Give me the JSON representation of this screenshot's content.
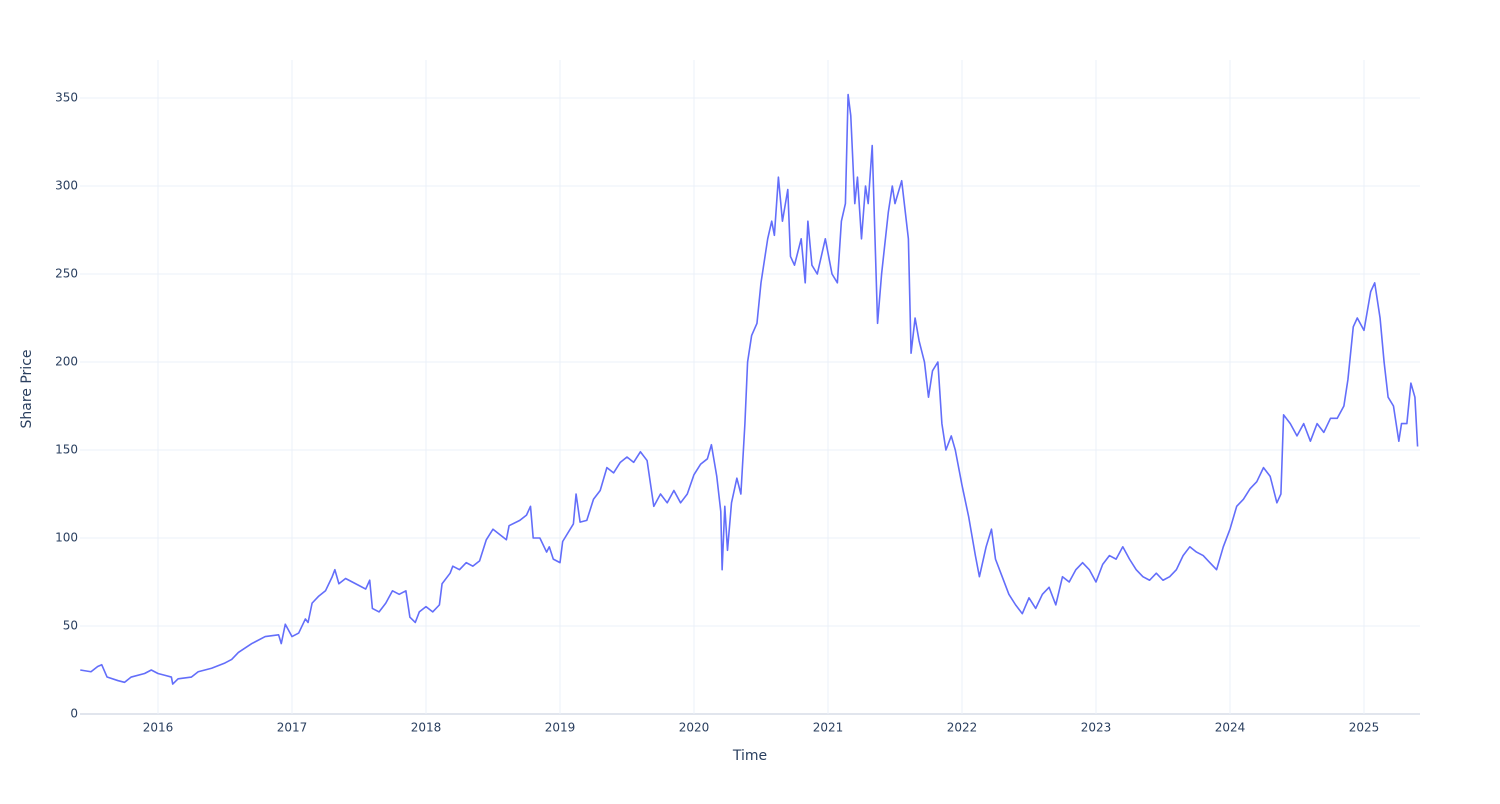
{
  "chart_data": {
    "type": "line",
    "x_label": "Time",
    "y_label": "Share Price",
    "grid": true,
    "xlim": [
      2015.418,
      2025.418
    ],
    "ylim": [
      0,
      371.6
    ],
    "xticks": [
      2016,
      2017,
      2018,
      2019,
      2020,
      2021,
      2022,
      2023,
      2024,
      2025
    ],
    "yticks": [
      0,
      50,
      100,
      150,
      200,
      250,
      300,
      350
    ],
    "x": [
      2015.42,
      2015.5,
      2015.55,
      2015.58,
      2015.62,
      2015.7,
      2015.75,
      2015.8,
      2015.9,
      2015.95,
      2016.0,
      2016.05,
      2016.1,
      2016.11,
      2016.15,
      2016.25,
      2016.3,
      2016.4,
      2016.5,
      2016.55,
      2016.6,
      2016.7,
      2016.8,
      2016.9,
      2016.92,
      2016.95,
      2017.0,
      2017.05,
      2017.1,
      2017.12,
      2017.15,
      2017.2,
      2017.25,
      2017.3,
      2017.32,
      2017.35,
      2017.4,
      2017.45,
      2017.5,
      2017.55,
      2017.58,
      2017.6,
      2017.65,
      2017.7,
      2017.75,
      2017.8,
      2017.85,
      2017.88,
      2017.92,
      2017.95,
      2018.0,
      2018.05,
      2018.1,
      2018.12,
      2018.18,
      2018.2,
      2018.25,
      2018.3,
      2018.35,
      2018.4,
      2018.45,
      2018.5,
      2018.55,
      2018.6,
      2018.62,
      2018.7,
      2018.75,
      2018.78,
      2018.8,
      2018.85,
      2018.9,
      2018.92,
      2018.95,
      2019.0,
      2019.02,
      2019.1,
      2019.12,
      2019.15,
      2019.2,
      2019.25,
      2019.3,
      2019.35,
      2019.4,
      2019.45,
      2019.5,
      2019.55,
      2019.6,
      2019.65,
      2019.7,
      2019.75,
      2019.8,
      2019.85,
      2019.9,
      2019.95,
      2020.0,
      2020.05,
      2020.1,
      2020.13,
      2020.17,
      2020.2,
      2020.21,
      2020.23,
      2020.25,
      2020.28,
      2020.32,
      2020.35,
      2020.38,
      2020.4,
      2020.43,
      2020.47,
      2020.5,
      2020.55,
      2020.58,
      2020.6,
      2020.63,
      2020.66,
      2020.7,
      2020.72,
      2020.75,
      2020.8,
      2020.83,
      2020.85,
      2020.88,
      2020.92,
      2020.98,
      2021.03,
      2021.07,
      2021.1,
      2021.13,
      2021.15,
      2021.17,
      2021.2,
      2021.22,
      2021.25,
      2021.28,
      2021.3,
      2021.33,
      2021.37,
      2021.4,
      2021.45,
      2021.48,
      2021.5,
      2021.55,
      2021.6,
      2021.62,
      2021.65,
      2021.68,
      2021.72,
      2021.75,
      2021.78,
      2021.82,
      2021.85,
      2021.88,
      2021.92,
      2021.95,
      2022.0,
      2022.05,
      2022.1,
      2022.13,
      2022.18,
      2022.22,
      2022.25,
      2022.3,
      2022.35,
      2022.4,
      2022.45,
      2022.5,
      2022.55,
      2022.6,
      2022.65,
      2022.7,
      2022.75,
      2022.8,
      2022.85,
      2022.9,
      2022.95,
      2023.0,
      2023.05,
      2023.1,
      2023.15,
      2023.2,
      2023.25,
      2023.3,
      2023.35,
      2023.4,
      2023.45,
      2023.5,
      2023.55,
      2023.6,
      2023.65,
      2023.7,
      2023.75,
      2023.8,
      2023.85,
      2023.9,
      2023.95,
      2024.0,
      2024.05,
      2024.1,
      2024.15,
      2024.2,
      2024.25,
      2024.3,
      2024.35,
      2024.38,
      2024.4,
      2024.45,
      2024.5,
      2024.55,
      2024.6,
      2024.65,
      2024.7,
      2024.75,
      2024.8,
      2024.85,
      2024.88,
      2024.92,
      2024.95,
      2025.0,
      2025.05,
      2025.08,
      2025.12,
      2025.15,
      2025.18,
      2025.22,
      2025.26,
      2025.28,
      2025.32,
      2025.35,
      2025.38,
      2025.4
    ],
    "series": [
      {
        "color": "#636efa",
        "values": [
          25,
          24,
          27,
          28,
          21,
          19,
          18,
          21,
          23,
          25,
          23,
          22,
          21,
          17,
          20,
          21,
          24,
          26,
          29,
          31,
          35,
          40,
          44,
          45,
          40,
          51,
          44,
          46,
          54,
          52,
          63,
          67,
          70,
          78,
          82,
          74,
          77,
          75,
          73,
          71,
          76,
          60,
          58,
          63,
          70,
          68,
          70,
          55,
          52,
          58,
          61,
          58,
          62,
          74,
          80,
          84,
          82,
          86,
          84,
          87,
          99,
          105,
          102,
          99,
          107,
          110,
          113,
          118,
          100,
          100,
          92,
          95,
          88,
          86,
          98,
          108,
          125,
          109,
          110,
          122,
          127,
          140,
          137,
          143,
          146,
          143,
          149,
          144,
          118,
          125,
          120,
          127,
          120,
          125,
          136,
          142,
          145,
          153,
          135,
          115,
          82,
          118,
          93,
          120,
          134,
          125,
          165,
          200,
          215,
          222,
          245,
          270,
          280,
          272,
          305,
          280,
          298,
          260,
          255,
          270,
          245,
          280,
          255,
          250,
          270,
          250,
          245,
          280,
          290,
          352,
          340,
          290,
          305,
          270,
          300,
          290,
          323,
          222,
          250,
          285,
          300,
          290,
          303,
          270,
          205,
          225,
          212,
          200,
          180,
          195,
          200,
          165,
          150,
          158,
          150,
          130,
          112,
          90,
          78,
          95,
          105,
          88,
          78,
          68,
          62,
          57,
          66,
          60,
          68,
          72,
          62,
          78,
          75,
          82,
          86,
          82,
          75,
          85,
          90,
          88,
          95,
          88,
          82,
          78,
          76,
          80,
          76,
          78,
          82,
          90,
          95,
          92,
          90,
          86,
          82,
          95,
          105,
          118,
          122,
          128,
          132,
          140,
          135,
          120,
          125,
          170,
          165,
          158,
          165,
          155,
          165,
          160,
          168,
          168,
          175,
          190,
          220,
          225,
          218,
          240,
          245,
          225,
          200,
          180,
          175,
          155,
          165,
          165,
          188,
          180,
          152
        ]
      }
    ]
  }
}
